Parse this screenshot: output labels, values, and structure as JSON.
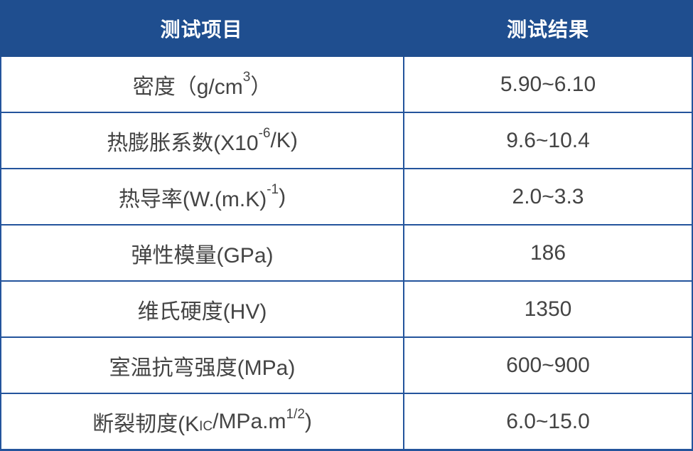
{
  "table": {
    "columns": [
      {
        "label": "测试项目"
      },
      {
        "label": "测试结果"
      }
    ],
    "rows": [
      {
        "item": [
          {
            "t": "密度（g/cm"
          },
          {
            "t": "3",
            "style": "sup"
          },
          {
            "t": "）"
          }
        ],
        "result": "5.90~6.10"
      },
      {
        "item": [
          {
            "t": "热膨胀系数(X10"
          },
          {
            "t": "-6",
            "style": "sup"
          },
          {
            "t": "/K)"
          }
        ],
        "result": "9.6~10.4"
      },
      {
        "item": [
          {
            "t": "热导率(W.(m.K)"
          },
          {
            "t": "-1",
            "style": "sup"
          },
          {
            "t": ")"
          }
        ],
        "result": "2.0~3.3"
      },
      {
        "item": [
          {
            "t": "弹性模量(GPa)"
          }
        ],
        "result": "186"
      },
      {
        "item": [
          {
            "t": "维氏硬度(HV)"
          }
        ],
        "result": "1350"
      },
      {
        "item": [
          {
            "t": "室温抗弯强度(MPa)"
          }
        ],
        "result": "600~900"
      },
      {
        "item": [
          {
            "t": "断裂韧度(K"
          },
          {
            "t": "IC",
            "style": "sub"
          },
          {
            "t": "/MPa.m"
          },
          {
            "t": "1/2",
            "style": "sup"
          },
          {
            "t": ")"
          }
        ],
        "result": "6.0~15.0"
      }
    ]
  },
  "colors": {
    "header_bg": "#1f4e8f",
    "header_text": "#ffffff",
    "border": "#24549c",
    "cell_text": "#444444"
  }
}
